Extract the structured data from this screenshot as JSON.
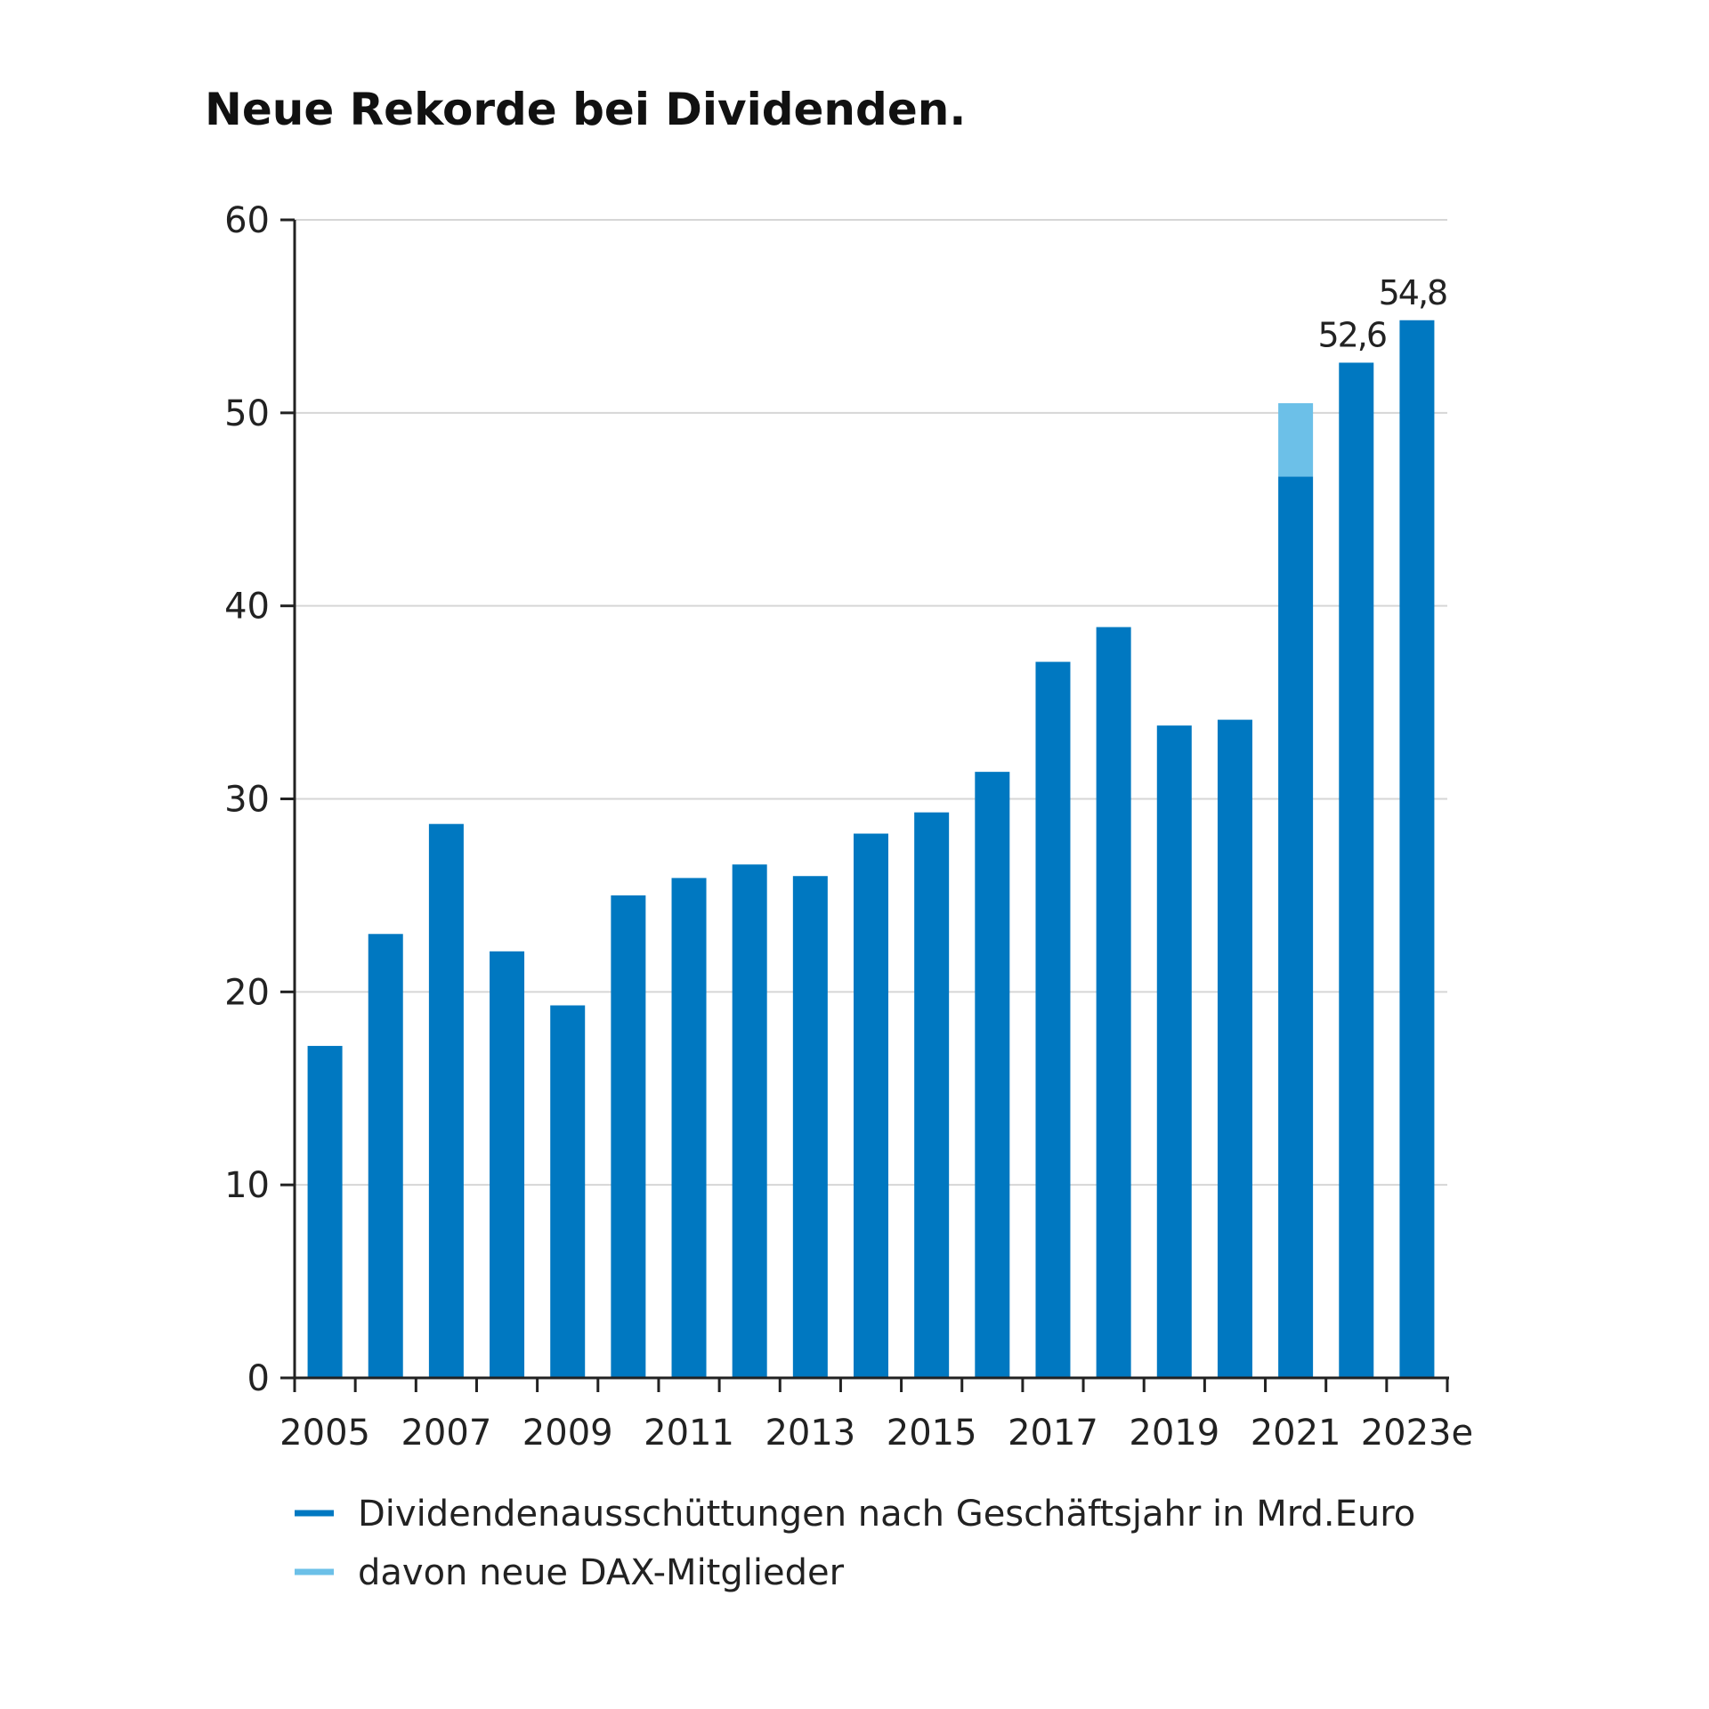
{
  "chart_data": {
    "type": "bar",
    "stacked": true,
    "title": "Neue Rekorde bei Dividenden.",
    "xlabel": "",
    "ylabel": "",
    "ylim": [
      0,
      60
    ],
    "yticks": [
      "0",
      "10",
      "20",
      "30",
      "40",
      "50",
      "60"
    ],
    "grid": true,
    "legend_placement": "bottom-left",
    "categories": [
      "2005",
      "2006",
      "2007",
      "2008",
      "2009",
      "2010",
      "2011",
      "2012",
      "2013",
      "2014",
      "2015",
      "2016",
      "2017",
      "2018",
      "2019",
      "2020",
      "2021",
      "2022",
      "2023e"
    ],
    "xtick_labels": [
      "2005",
      "2007",
      "2009",
      "2011",
      "2013",
      "2015",
      "2017",
      "2019",
      "2021",
      "2023e"
    ],
    "series": [
      {
        "name": "Dividendenausschüttungen nach Geschäftsjahr in Mrd.Euro",
        "color": "#0078c1",
        "values": [
          17.2,
          23.0,
          28.7,
          22.1,
          19.3,
          25.0,
          25.9,
          26.6,
          26.0,
          28.2,
          29.3,
          31.4,
          37.1,
          38.9,
          33.8,
          34.1,
          46.7,
          52.6,
          54.8
        ]
      },
      {
        "name": "davon neue DAX-Mitglieder",
        "color": "#6cc0e8",
        "values": [
          0,
          0,
          0,
          0,
          0,
          0,
          0,
          0,
          0,
          0,
          0,
          0,
          0,
          0,
          0,
          0,
          3.8,
          0,
          0
        ]
      }
    ],
    "data_labels": [
      {
        "category": "2022",
        "text": "52,6"
      },
      {
        "category": "2023e",
        "text": "54,8"
      }
    ]
  }
}
